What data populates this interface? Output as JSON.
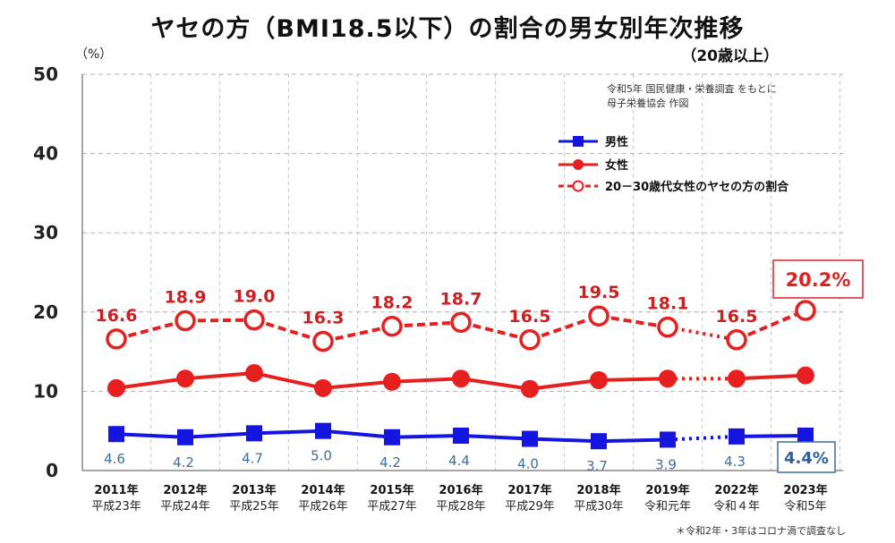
{
  "header": {
    "title": "ヤセの方（BMI18.5以下）の割合の男女別年次推移",
    "subtitle": "（20歳以上）",
    "unit": "（%）",
    "source_line1": "令和5年 国民健康・栄養調査 をもとに",
    "source_line2": "母子栄養協会 作図",
    "footnote": "＊令和2年・3年はコロナ渦で調査なし"
  },
  "colors": {
    "men": "#1515e0",
    "women": "#e61f1f",
    "slim": "#e61f1f",
    "grid": "#b0b0b0"
  },
  "chart_data": {
    "type": "line",
    "title": "ヤセの方（BMI18.5以下）の割合の男女別年次推移",
    "ylabel": "（%）",
    "ylim": [
      0,
      50
    ],
    "yticks": [
      "0",
      "10",
      "20",
      "30",
      "40",
      "50"
    ],
    "categories": [
      {
        "year": "2011年",
        "era": "平成23年"
      },
      {
        "year": "2012年",
        "era": "平成24年"
      },
      {
        "year": "2013年",
        "era": "平成25年"
      },
      {
        "year": "2014年",
        "era": "平成26年"
      },
      {
        "year": "2015年",
        "era": "平成27年"
      },
      {
        "year": "2016年",
        "era": "平成28年"
      },
      {
        "year": "2017年",
        "era": "平成29年"
      },
      {
        "year": "2018年",
        "era": "平成30年"
      },
      {
        "year": "2019年",
        "era": "令和元年"
      },
      {
        "year": "2022年",
        "era": "令和４年"
      },
      {
        "year": "2023年",
        "era": "令和5年"
      }
    ],
    "gap_after_index": 8,
    "series": [
      {
        "name": "男性",
        "key": "men",
        "values": [
          4.6,
          4.2,
          4.7,
          5.0,
          4.2,
          4.4,
          4.0,
          3.7,
          3.9,
          4.3,
          4.4
        ],
        "labels": [
          "4.6",
          "4.2",
          "4.7",
          "5.0",
          "4.2",
          "4.4",
          "4.0",
          "3.7",
          "3.9",
          "4.3",
          "4.4%"
        ]
      },
      {
        "name": "女性",
        "key": "women",
        "values": [
          10.4,
          11.6,
          12.3,
          10.4,
          11.2,
          11.6,
          10.3,
          11.4,
          11.6,
          11.6,
          12.0
        ],
        "labels": []
      },
      {
        "name": "20－30歳代女性のヤセの方の割合",
        "key": "slim",
        "values": [
          16.6,
          18.9,
          19.0,
          16.3,
          18.2,
          18.7,
          16.5,
          19.5,
          18.1,
          16.5,
          20.2
        ],
        "labels": [
          "16.6",
          "18.9",
          "19.0",
          "16.3",
          "18.2",
          "18.7",
          "16.5",
          "19.5",
          "18.1",
          "16.5",
          "20.2%"
        ]
      }
    ],
    "legend": [
      "男性",
      "女性",
      "20－30歳代女性のヤセの方の割合"
    ]
  }
}
